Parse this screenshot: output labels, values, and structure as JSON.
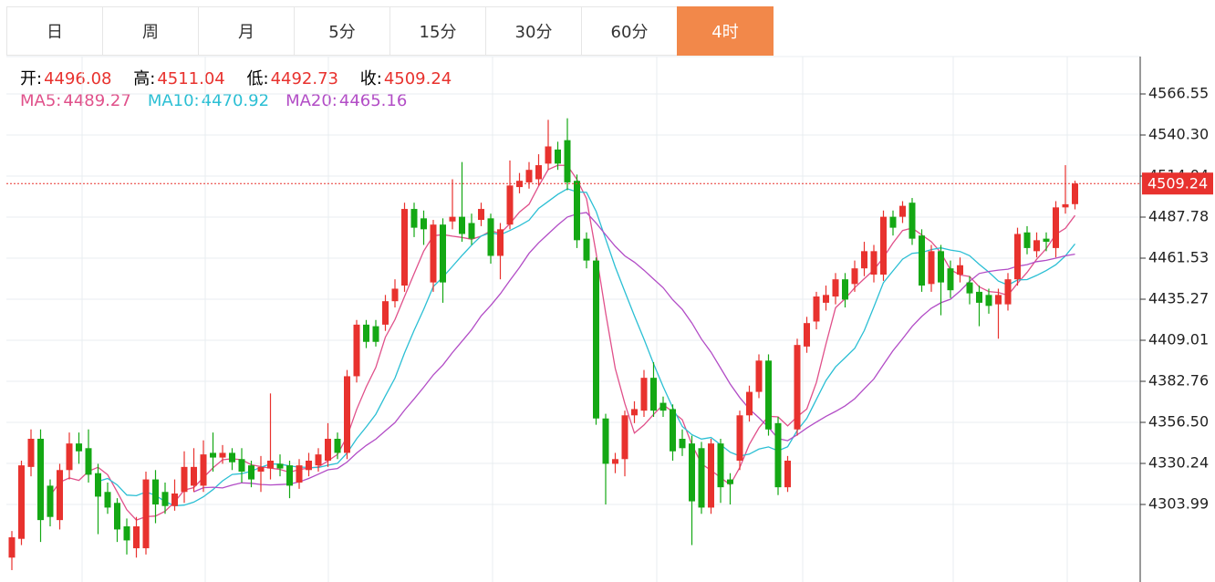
{
  "tabs": [
    "日",
    "周",
    "月",
    "5分",
    "15分",
    "30分",
    "60分",
    "4时"
  ],
  "active_tab": 7,
  "chart_data": {
    "type": "candlestick",
    "header": {
      "open_label": "开:",
      "open": 4496.08,
      "high_label": "高:",
      "high": 4511.04,
      "low_label": "低:",
      "low": 4492.73,
      "close_label": "收:",
      "close": 4509.24
    },
    "up_color": "#e8322e",
    "down_color": "#14a814",
    "ma": [
      {
        "name": "MA5:",
        "value": 4489.27,
        "color": "#e0508a"
      },
      {
        "name": "MA10:",
        "value": 4470.92,
        "color": "#2bbfd4"
      },
      {
        "name": "MA20:",
        "value": 4465.16,
        "color": "#b24cc6"
      }
    ],
    "ylim": [
      4254.4,
      4590.47
    ],
    "yticks": [
      4566.55,
      {
        "value": 4540.3,
        "label": "4540.30"
      },
      4514.04,
      4487.78,
      4461.53,
      4435.27,
      4409.01,
      4382.76,
      {
        "value": 4356.5,
        "label": "4356.50"
      },
      4330.24,
      4303.99
    ],
    "open": [
      4270,
      4282,
      4328,
      4346,
      4316,
      4294,
      4326,
      4343,
      4340,
      4324,
      4312,
      4305,
      4290,
      4276,
      4276,
      4320,
      4312,
      4303,
      4312,
      4316,
      4316,
      4337,
      4334,
      4337,
      4333,
      4329,
      4325,
      4327,
      4330,
      4329,
      4318,
      4326,
      4329,
      4332,
      4346,
      4337,
      4386,
      4419,
      4418,
      4419,
      4434,
      4444,
      4493,
      4487,
      4446,
      4483,
      4485,
      4488,
      4484,
      4486,
      4487,
      4463,
      4483,
      4507,
      4510,
      4512,
      4522,
      4531,
      4537,
      4511,
      4474,
      4460,
      4359,
      4330,
      4333,
      4361,
      4364,
      4385,
      4369,
      4365,
      4346,
      4343,
      4340,
      4302,
      4343,
      4320,
      4332,
      4361,
      4376,
      4396,
      4356,
      4315,
      4352,
      4405,
      4421,
      4433,
      4437,
      4448,
      4445,
      4455,
      4451,
      4451,
      4488,
      4488,
      4497,
      4476,
      4445,
      4466,
      4455,
      4451,
      4446,
      4440,
      4438,
      4432,
      4432,
      4448,
      4478,
      4466,
      4474,
      4468,
      4494,
      4496.08
    ],
    "close": [
      4283,
      4329,
      4346,
      4294,
      4296,
      4326,
      4343,
      4338,
      4323,
      4309,
      4302,
      4288,
      4281,
      4290,
      4320,
      4304,
      4303,
      4311,
      4328,
      4328,
      4336,
      4334,
      4337,
      4331,
      4325,
      4320,
      4328,
      4332,
      4327,
      4316,
      4329,
      4332,
      4336,
      4346,
      4337,
      4386,
      4419,
      4408,
      4408,
      4434,
      4442,
      4493,
      4481,
      4480,
      4483,
      4446,
      4488,
      4477,
      4474,
      4493,
      4463,
      4480,
      4508,
      4511,
      4518,
      4521,
      4533,
      4522,
      4510,
      4473,
      4460,
      4359,
      4330,
      4333,
      4361,
      4365,
      4385,
      4364,
      4364,
      4338,
      4340,
      4306,
      4302,
      4343,
      4315,
      4317,
      4361,
      4376,
      4396,
      4352,
      4315,
      4332,
      4406,
      4420,
      4437,
      4438,
      4448,
      4435,
      4455,
      4466,
      4466,
      4488,
      4481,
      4495,
      4474,
      4444,
      4466,
      4446,
      4441,
      4457,
      4439,
      4433,
      4431,
      4438,
      4448,
      4477,
      4468,
      4473,
      4472,
      4494,
      4496,
      4509.24
    ],
    "high": [
      4287,
      4332,
      4352,
      4352,
      4320,
      4330,
      4350,
      4350,
      4352,
      4330,
      4318,
      4308,
      4295,
      4296,
      4325,
      4326,
      4318,
      4320,
      4338,
      4340,
      4345,
      4350,
      4342,
      4340,
      4340,
      4332,
      4335,
      4375,
      4336,
      4332,
      4333,
      4337,
      4340,
      4356,
      4350,
      4390,
      4422,
      4422,
      4422,
      4438,
      4448,
      4497,
      4497,
      4492,
      4486,
      4487,
      4512,
      4523,
      4490,
      4497,
      4490,
      4484,
      4524,
      4516,
      4523,
      4528,
      4550,
      4536,
      4551,
      4515,
      4478,
      4462,
      4362,
      4337,
      4364,
      4370,
      4390,
      4395,
      4373,
      4368,
      4352,
      4348,
      4344,
      4346,
      4346,
      4324,
      4364,
      4380,
      4400,
      4400,
      4360,
      4335,
      4410,
      4424,
      4440,
      4444,
      4452,
      4452,
      4460,
      4472,
      4470,
      4492,
      4492,
      4498,
      4500,
      4480,
      4470,
      4470,
      4460,
      4462,
      4450,
      4444,
      4442,
      4442,
      4452,
      4481,
      4482,
      4478,
      4478,
      4498,
      4521,
      4511.04
    ],
    "low": [
      4262,
      4278,
      4322,
      4280,
      4290,
      4288,
      4320,
      4330,
      4318,
      4285,
      4298,
      4280,
      4272,
      4270,
      4272,
      4292,
      4298,
      4300,
      4305,
      4312,
      4312,
      4325,
      4330,
      4326,
      4318,
      4315,
      4312,
      4320,
      4322,
      4308,
      4314,
      4322,
      4325,
      4328,
      4333,
      4333,
      4382,
      4404,
      4405,
      4415,
      4430,
      4440,
      4475,
      4470,
      4440,
      4433,
      4480,
      4472,
      4470,
      4482,
      4458,
      4448,
      4480,
      4503,
      4506,
      4508,
      4518,
      4518,
      4505,
      4468,
      4455,
      4355,
      4304,
      4324,
      4322,
      4356,
      4360,
      4360,
      4360,
      4332,
      4335,
      4278,
      4298,
      4298,
      4305,
      4304,
      4326,
      4357,
      4372,
      4348,
      4310,
      4312,
      4348,
      4401,
      4416,
      4428,
      4432,
      4430,
      4440,
      4450,
      4446,
      4447,
      4476,
      4484,
      4470,
      4440,
      4440,
      4425,
      4436,
      4446,
      4432,
      4418,
      4426,
      4410,
      4428,
      4444,
      4464,
      4462,
      4466,
      4462,
      4490,
      4492.73
    ]
  }
}
